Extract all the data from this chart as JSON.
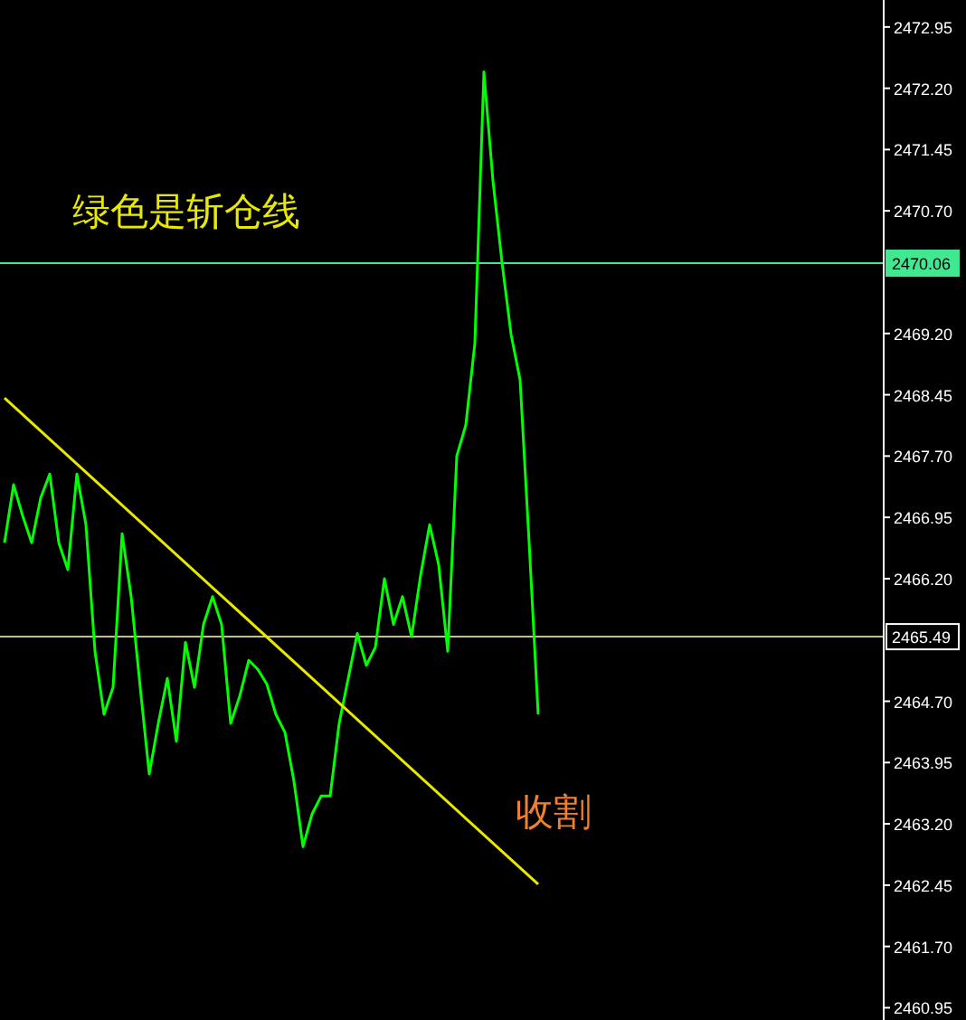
{
  "chart_data": {
    "type": "line",
    "tick_labels": "y",
    "categories": [
      null,
      null,
      null,
      null,
      null,
      null,
      null,
      null,
      null,
      null,
      null,
      null,
      null,
      null,
      null,
      null,
      null,
      null,
      null,
      null,
      null,
      null,
      null,
      null,
      null,
      null,
      null,
      null,
      null,
      null,
      null,
      null,
      null,
      null,
      null,
      null,
      null,
      null,
      null,
      null,
      null,
      null,
      null,
      null,
      null,
      null,
      null,
      null,
      null,
      null,
      null,
      null,
      null,
      null,
      null,
      null,
      null,
      null,
      null,
      null
    ],
    "series": [
      {
        "color": "#00ff00",
        "values": [
          2466.64,
          2467.35,
          2466.97,
          2466.64,
          2467.19,
          2467.48,
          2466.64,
          2466.31,
          2467.48,
          2466.86,
          2465.31,
          2464.54,
          2464.87,
          2466.75,
          2465.98,
          2464.87,
          2463.81,
          2464.43,
          2464.98,
          2464.21,
          2465.42,
          2464.87,
          2465.64,
          2465.98,
          2465.64,
          2464.43,
          2464.76,
          2465.2,
          2465.09,
          2464.91,
          2464.54,
          2464.32,
          2463.72,
          2462.92,
          2463.32,
          2463.54,
          2463.54,
          2464.43,
          2464.98,
          2465.53,
          2465.14,
          2465.36,
          2466.2,
          2465.64,
          2465.98,
          2465.49,
          2466.24,
          2466.86,
          2466.37,
          2465.31,
          2467.7,
          2468.08,
          2469.08,
          2472.4,
          2471.07,
          2470.07,
          2469.19,
          2468.63,
          2466.64,
          2464.54
        ]
      },
      {
        "color": "#e8e800",
        "values": [
          2468.41,
          null,
          null,
          null,
          null,
          null,
          null,
          null,
          null,
          null,
          null,
          null,
          null,
          null,
          null,
          null,
          null,
          null,
          null,
          null,
          null,
          null,
          null,
          null,
          null,
          null,
          null,
          null,
          null,
          null,
          null,
          null,
          null,
          null,
          null,
          null,
          null,
          null,
          null,
          null,
          null,
          null,
          null,
          null,
          null,
          null,
          null,
          null,
          null,
          null,
          null,
          null,
          null,
          null,
          null,
          null,
          null,
          null,
          null,
          2462.46
        ]
      }
    ],
    "ylim": [
      2460.8,
      2473.28
    ],
    "yticks": [
      2472.95,
      {
        "value": 2472.2,
        "label": "2472.20"
      },
      2471.45,
      {
        "value": 2470.7,
        "label": "2470.70"
      },
      {
        "value": 2469.2,
        "label": "2469.20"
      },
      2468.45,
      {
        "value": 2467.7,
        "label": "2467.70"
      },
      2466.95,
      {
        "value": 2466.2,
        "label": "2466.20"
      },
      {
        "value": 2464.7,
        "label": "2464.70"
      },
      2463.95,
      {
        "value": 2463.2,
        "label": "2463.20"
      },
      2462.45,
      {
        "value": 2461.7,
        "label": "2461.70"
      },
      2460.95
    ],
    "ref_lines": [
      {
        "axis": "y",
        "value": 2470.06,
        "label": "2470.06",
        "color": "#40e890"
      },
      {
        "axis": "y",
        "value": 2465.49,
        "label": "2465.49",
        "color": "#c8c080"
      }
    ],
    "annotations": [
      "绿色是斩仓线",
      "收割"
    ]
  }
}
